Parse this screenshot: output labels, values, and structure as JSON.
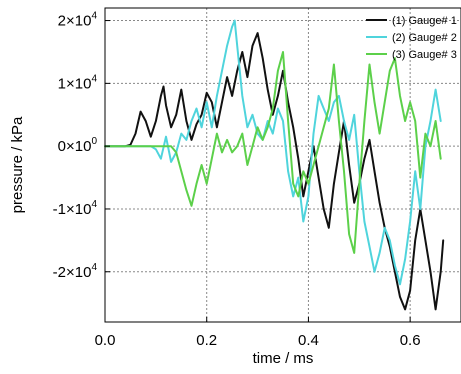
{
  "chart_data": {
    "type": "line",
    "title": "",
    "xlabel": "time / ms",
    "ylabel": "pressure / kPa",
    "xlim": [
      0.0,
      0.7
    ],
    "ylim": [
      -28000,
      22000
    ],
    "x_ticks": [
      {
        "value": 0.0,
        "label": "0.0"
      },
      {
        "value": 0.2,
        "label": "0.2"
      },
      {
        "value": 0.4,
        "label": "0.4"
      },
      {
        "value": 0.6,
        "label": "0.6"
      }
    ],
    "y_ticks": [
      {
        "value": 20000,
        "base": "2×10",
        "exp": "4"
      },
      {
        "value": 10000,
        "base": "1×10",
        "exp": "4"
      },
      {
        "value": 0,
        "base": "0×10",
        "exp": "0"
      },
      {
        "value": -10000,
        "base": "-1×10",
        "exp": "4"
      },
      {
        "value": -20000,
        "base": "-2×10",
        "exp": "4"
      }
    ],
    "grid": true,
    "legend_position": "top-right",
    "series": [
      {
        "name": "(1) Gauge# 1",
        "color": "#111111",
        "points": [
          [
            0.0,
            0
          ],
          [
            0.02,
            0
          ],
          [
            0.04,
            0
          ],
          [
            0.05,
            200
          ],
          [
            0.06,
            2000
          ],
          [
            0.07,
            5500
          ],
          [
            0.08,
            4000
          ],
          [
            0.09,
            1500
          ],
          [
            0.1,
            4000
          ],
          [
            0.11,
            8000
          ],
          [
            0.115,
            9500
          ],
          [
            0.12,
            6500
          ],
          [
            0.13,
            3000
          ],
          [
            0.14,
            5000
          ],
          [
            0.15,
            9000
          ],
          [
            0.16,
            4000
          ],
          [
            0.17,
            1000
          ],
          [
            0.18,
            3500
          ],
          [
            0.19,
            5000
          ],
          [
            0.2,
            8500
          ],
          [
            0.21,
            7000
          ],
          [
            0.22,
            3000
          ],
          [
            0.23,
            7000
          ],
          [
            0.24,
            11000
          ],
          [
            0.25,
            8000
          ],
          [
            0.26,
            12000
          ],
          [
            0.27,
            15000
          ],
          [
            0.28,
            11000
          ],
          [
            0.29,
            16000
          ],
          [
            0.3,
            18000
          ],
          [
            0.31,
            14000
          ],
          [
            0.32,
            9000
          ],
          [
            0.33,
            5000
          ],
          [
            0.34,
            8000
          ],
          [
            0.35,
            12000
          ],
          [
            0.36,
            7000
          ],
          [
            0.37,
            3000
          ],
          [
            0.38,
            -2000
          ],
          [
            0.39,
            -8000
          ],
          [
            0.4,
            -4000
          ],
          [
            0.41,
            0
          ],
          [
            0.42,
            -5000
          ],
          [
            0.43,
            -10000
          ],
          [
            0.44,
            -13000
          ],
          [
            0.45,
            -6000
          ],
          [
            0.46,
            -1000
          ],
          [
            0.47,
            4000
          ],
          [
            0.48,
            -3000
          ],
          [
            0.49,
            -9000
          ],
          [
            0.5,
            -6000
          ],
          [
            0.51,
            -2000
          ],
          [
            0.52,
            1000
          ],
          [
            0.53,
            -4000
          ],
          [
            0.54,
            -9000
          ],
          [
            0.55,
            -13000
          ],
          [
            0.56,
            -16000
          ],
          [
            0.57,
            -20000
          ],
          [
            0.58,
            -24000
          ],
          [
            0.59,
            -26000
          ],
          [
            0.6,
            -23000
          ],
          [
            0.61,
            -15000
          ],
          [
            0.62,
            -10000
          ],
          [
            0.63,
            -15000
          ],
          [
            0.64,
            -20000
          ],
          [
            0.65,
            -26000
          ],
          [
            0.66,
            -20000
          ],
          [
            0.665,
            -15000
          ]
        ]
      },
      {
        "name": "(2) Gauge# 2",
        "color": "#4fd4dc",
        "points": [
          [
            0.0,
            0
          ],
          [
            0.08,
            0
          ],
          [
            0.09,
            0
          ],
          [
            0.1,
            -500
          ],
          [
            0.11,
            -2000
          ],
          [
            0.12,
            1500
          ],
          [
            0.13,
            -2500
          ],
          [
            0.14,
            -1000
          ],
          [
            0.15,
            2000
          ],
          [
            0.16,
            1000
          ],
          [
            0.17,
            4000
          ],
          [
            0.18,
            6000
          ],
          [
            0.19,
            3000
          ],
          [
            0.2,
            7000
          ],
          [
            0.21,
            3000
          ],
          [
            0.22,
            8000
          ],
          [
            0.23,
            12000
          ],
          [
            0.24,
            16000
          ],
          [
            0.25,
            19000
          ],
          [
            0.255,
            20000
          ],
          [
            0.26,
            16000
          ],
          [
            0.27,
            8000
          ],
          [
            0.28,
            3000
          ],
          [
            0.29,
            5000
          ],
          [
            0.3,
            2000
          ],
          [
            0.31,
            1000
          ],
          [
            0.32,
            4000
          ],
          [
            0.33,
            2000
          ],
          [
            0.34,
            6000
          ],
          [
            0.35,
            4000
          ],
          [
            0.36,
            -4000
          ],
          [
            0.37,
            -8000
          ],
          [
            0.38,
            -5000
          ],
          [
            0.39,
            -12000
          ],
          [
            0.4,
            -8000
          ],
          [
            0.41,
            2000
          ],
          [
            0.42,
            8000
          ],
          [
            0.43,
            6000
          ],
          [
            0.44,
            4000
          ],
          [
            0.45,
            7000
          ],
          [
            0.46,
            8000
          ],
          [
            0.47,
            4000
          ],
          [
            0.48,
            1000
          ],
          [
            0.49,
            5000
          ],
          [
            0.5,
            -4000
          ],
          [
            0.51,
            -12000
          ],
          [
            0.52,
            -16000
          ],
          [
            0.53,
            -20000
          ],
          [
            0.54,
            -17000
          ],
          [
            0.55,
            -13000
          ],
          [
            0.56,
            -15000
          ],
          [
            0.57,
            -19000
          ],
          [
            0.58,
            -22000
          ],
          [
            0.59,
            -18000
          ],
          [
            0.6,
            -12000
          ],
          [
            0.61,
            -4000
          ],
          [
            0.62,
            -10000
          ],
          [
            0.63,
            0
          ],
          [
            0.64,
            4000
          ],
          [
            0.65,
            9000
          ],
          [
            0.66,
            4000
          ]
        ]
      },
      {
        "name": "(3) Gauge# 3",
        "color": "#5cd04a",
        "points": [
          [
            0.0,
            0
          ],
          [
            0.1,
            0
          ],
          [
            0.13,
            0
          ],
          [
            0.14,
            -1000
          ],
          [
            0.15,
            -4000
          ],
          [
            0.16,
            -7000
          ],
          [
            0.17,
            -9500
          ],
          [
            0.18,
            -6000
          ],
          [
            0.19,
            -3000
          ],
          [
            0.2,
            -6000
          ],
          [
            0.21,
            -2000
          ],
          [
            0.22,
            2000
          ],
          [
            0.23,
            -1000
          ],
          [
            0.24,
            1000
          ],
          [
            0.25,
            -1000
          ],
          [
            0.26,
            0
          ],
          [
            0.27,
            2000
          ],
          [
            0.28,
            -3000
          ],
          [
            0.29,
            0
          ],
          [
            0.3,
            3000
          ],
          [
            0.31,
            1000
          ],
          [
            0.32,
            3000
          ],
          [
            0.33,
            6000
          ],
          [
            0.34,
            12000
          ],
          [
            0.35,
            15000
          ],
          [
            0.36,
            4000
          ],
          [
            0.37,
            -6000
          ],
          [
            0.38,
            -8000
          ],
          [
            0.39,
            -4000
          ],
          [
            0.4,
            -6000
          ],
          [
            0.41,
            -3000
          ],
          [
            0.42,
            0
          ],
          [
            0.43,
            3000
          ],
          [
            0.44,
            6000
          ],
          [
            0.45,
            13000
          ],
          [
            0.46,
            4000
          ],
          [
            0.47,
            -4000
          ],
          [
            0.48,
            -14000
          ],
          [
            0.49,
            -17000
          ],
          [
            0.5,
            -6000
          ],
          [
            0.51,
            4000
          ],
          [
            0.52,
            13000
          ],
          [
            0.53,
            7000
          ],
          [
            0.54,
            2000
          ],
          [
            0.55,
            7000
          ],
          [
            0.56,
            12000
          ],
          [
            0.57,
            14000
          ],
          [
            0.58,
            8000
          ],
          [
            0.59,
            4000
          ],
          [
            0.6,
            7000
          ],
          [
            0.61,
            4000
          ],
          [
            0.62,
            -5000
          ],
          [
            0.63,
            2000
          ],
          [
            0.64,
            0
          ],
          [
            0.65,
            4000
          ],
          [
            0.66,
            -2000
          ]
        ]
      }
    ]
  }
}
